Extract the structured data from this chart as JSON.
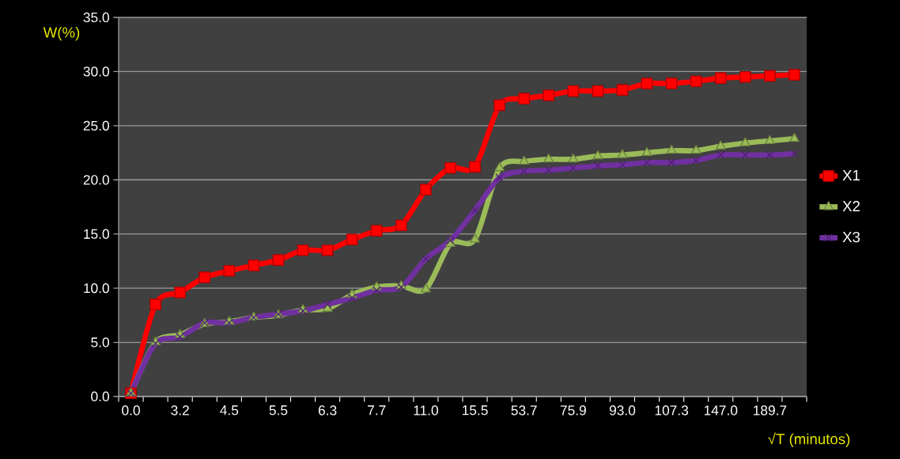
{
  "chart_data": {
    "type": "line",
    "xlabel": "√T (minutos)",
    "ylabel": "W(%)",
    "categories": [
      "0.0",
      null,
      "3.2",
      null,
      "4.5",
      null,
      "5.5",
      null,
      "6.3",
      null,
      "7.7",
      null,
      "11.0",
      null,
      "15.5",
      null,
      "53.7",
      null,
      "75.9",
      null,
      "93.0",
      null,
      "107.3",
      null,
      "147.0",
      null,
      "189.7",
      null
    ],
    "series": [
      {
        "name": "X1",
        "color": "#ff0000",
        "marker": "square",
        "values": [
          0.3,
          8.5,
          9.6,
          11.0,
          11.6,
          12.1,
          12.6,
          13.5,
          13.5,
          14.5,
          15.3,
          15.8,
          19.1,
          21.1,
          21.2,
          26.9,
          27.5,
          27.8,
          28.2,
          28.2,
          28.3,
          28.9,
          28.9,
          29.1,
          29.4,
          29.5,
          29.6,
          29.7
        ]
      },
      {
        "name": "X2",
        "color": "#9bbb59",
        "marker": "triangle",
        "values": [
          0.3,
          5.0,
          5.7,
          6.7,
          6.9,
          7.3,
          7.5,
          8.0,
          8.1,
          9.4,
          10.1,
          10.2,
          9.9,
          14.1,
          14.5,
          21.1,
          21.7,
          21.9,
          21.9,
          22.2,
          22.3,
          22.5,
          22.7,
          22.7,
          23.1,
          23.4,
          23.6,
          23.8
        ]
      },
      {
        "name": "X3",
        "color": "#7030a0",
        "marker": "cross",
        "values": [
          0.3,
          4.9,
          5.5,
          6.8,
          6.8,
          7.3,
          7.6,
          7.9,
          8.5,
          9.1,
          9.8,
          10.1,
          12.7,
          14.4,
          17.2,
          20.2,
          20.8,
          20.9,
          21.1,
          21.3,
          21.4,
          21.6,
          21.6,
          21.8,
          22.3,
          22.3,
          22.3,
          22.4
        ]
      }
    ],
    "ylim": [
      0,
      35
    ],
    "yticks": [
      {
        "value": 0,
        "label": "0.0"
      },
      {
        "value": 5,
        "label": "5.0"
      },
      {
        "value": 10,
        "label": "10.0"
      },
      {
        "value": 15,
        "label": "15.0"
      },
      {
        "value": 20,
        "label": "20.0"
      },
      {
        "value": 25,
        "label": "25.0"
      },
      {
        "value": 30,
        "label": "30.0"
      },
      {
        "value": 35,
        "label": "35.0"
      }
    ],
    "grid": "y",
    "legend": "right"
  }
}
